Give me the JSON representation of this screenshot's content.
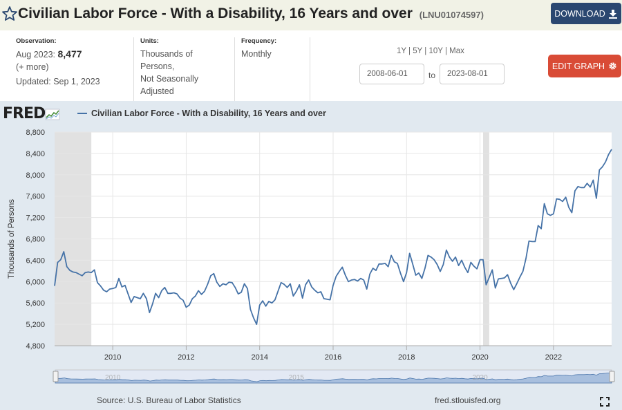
{
  "header": {
    "title": "Civilian Labor Force - With a Disability, 16 Years and over",
    "series_id": "(LNU01074597)",
    "download_label": "DOWNLOAD"
  },
  "meta": {
    "observation_label": "Observation:",
    "observation_date": "Aug 2023:",
    "observation_value": "8,477",
    "more_label": "(+ more)",
    "updated": "Updated: Sep 1, 2023",
    "units_label": "Units:",
    "units_lines": [
      "Thousands of",
      "Persons,",
      "Not Seasonally",
      "Adjusted"
    ],
    "frequency_label": "Frequency:",
    "frequency_value": "Monthly",
    "range_links": [
      "1Y",
      "5Y",
      "10Y",
      "Max"
    ],
    "start_date": "2008-06-01",
    "to_label": "to",
    "end_date": "2023-08-01",
    "edit_graph_label": "EDIT GRAPH"
  },
  "footer": {
    "source": "Source: U.S. Bureau of Labor Statistics",
    "site": "fred.stlouisfed.org"
  },
  "logo": {
    "text": "FRED"
  },
  "colors": {
    "series": "#4572a7",
    "recession": "#e1e1e1",
    "header_bg": "#f1f2e6",
    "download_bg": "#2a4770",
    "edit_bg": "#d94b36"
  },
  "chart_data": {
    "type": "line",
    "legend": "Civilian Labor Force - With a Disability, 16 Years and over",
    "ylabel": "Thousands of Persons",
    "ylim": [
      4800,
      8800
    ],
    "yticks": [
      4800,
      5200,
      5600,
      6000,
      6400,
      6800,
      7200,
      7600,
      8000,
      8400,
      8800
    ],
    "ytick_labels": [
      "4,800",
      "5,200",
      "5,600",
      "6,000",
      "6,400",
      "6,800",
      "7,200",
      "7,600",
      "8,000",
      "8,400",
      "8,800"
    ],
    "xticks": [
      2010,
      2012,
      2014,
      2016,
      2018,
      2020,
      2022
    ],
    "xtick_labels": [
      "2010",
      "2012",
      "2014",
      "2016",
      "2018",
      "2020",
      "2022"
    ],
    "navigator_labels": [
      {
        "year": 2010,
        "label": "2010"
      },
      {
        "year": 2015,
        "label": "2015"
      },
      {
        "year": 2020,
        "label": "2020"
      }
    ],
    "recessions": [
      [
        "2008-06",
        "2009-06"
      ],
      [
        "2020-02",
        "2020-04"
      ]
    ],
    "start": "2008-06",
    "values": [
      5920,
      6360,
      6410,
      6560,
      6280,
      6210,
      6180,
      6170,
      6140,
      6110,
      6170,
      6180,
      6170,
      6220,
      5980,
      5920,
      5840,
      5810,
      5860,
      5870,
      5890,
      6060,
      5900,
      5930,
      5770,
      5610,
      5720,
      5700,
      5680,
      5780,
      5680,
      5420,
      5580,
      5780,
      5700,
      5830,
      5890,
      5780,
      5780,
      5790,
      5770,
      5690,
      5650,
      5520,
      5560,
      5680,
      5730,
      5830,
      5760,
      5820,
      5950,
      6110,
      6150,
      5990,
      5910,
      5960,
      5940,
      5990,
      5980,
      5890,
      5770,
      5800,
      5960,
      5870,
      5480,
      5320,
      5200,
      5560,
      5640,
      5540,
      5630,
      5600,
      5660,
      5820,
      5980,
      5950,
      5890,
      5960,
      5730,
      5820,
      5940,
      5690,
      5940,
      6030,
      5900,
      5840,
      5790,
      5810,
      5680,
      5670,
      5660,
      5930,
      6100,
      6190,
      6270,
      6120,
      6000,
      6030,
      6040,
      6010,
      6060,
      6030,
      5860,
      6140,
      6250,
      6210,
      6330,
      6330,
      6340,
      6280,
      6490,
      6370,
      6340,
      6160,
      6000,
      6170,
      6530,
      6330,
      6120,
      6160,
      6060,
      6250,
      6490,
      6460,
      6410,
      6320,
      6190,
      6320,
      6590,
      6460,
      6380,
      6460,
      6300,
      6400,
      6270,
      6170,
      6360,
      6290,
      6240,
      6410,
      6410,
      5940,
      6080,
      6220,
      5880,
      6050,
      6060,
      6070,
      6130,
      5970,
      5850,
      5960,
      6080,
      6190,
      6430,
      6760,
      6750,
      6750,
      7050,
      6990,
      7460,
      7270,
      7240,
      7270,
      7550,
      7540,
      7500,
      7580,
      7390,
      7290,
      7700,
      7780,
      7760,
      7760,
      7840,
      7770,
      7900,
      7560,
      8090,
      8150,
      8240,
      8380,
      8477
    ]
  }
}
